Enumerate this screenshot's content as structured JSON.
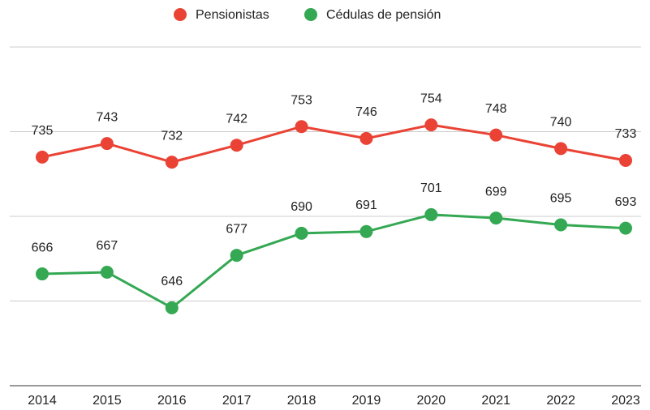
{
  "chart_data": {
    "type": "line",
    "categories": [
      "2014",
      "2015",
      "2016",
      "2017",
      "2018",
      "2019",
      "2020",
      "2021",
      "2022",
      "2023"
    ],
    "series": [
      {
        "name": "Pensionistas",
        "color": "#ea4335",
        "values": [
          735,
          743,
          732,
          742,
          753,
          746,
          754,
          748,
          740,
          733
        ]
      },
      {
        "name": "Cédulas de pensión",
        "color": "#34a853",
        "values": [
          666,
          667,
          646,
          677,
          690,
          691,
          701,
          699,
          695,
          693
        ]
      }
    ],
    "ylim": [
      600,
      800
    ],
    "yticks": [
      600,
      650,
      700,
      750,
      800
    ],
    "grid": true,
    "legend": "top"
  }
}
